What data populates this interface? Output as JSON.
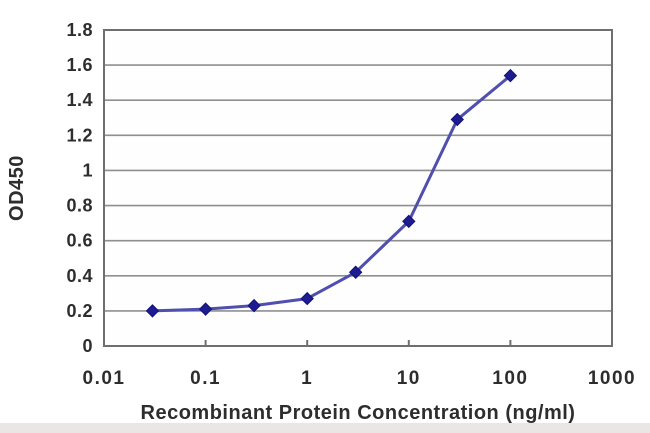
{
  "figure": {
    "background": "#ffffff"
  },
  "chart_data": {
    "type": "line",
    "title": "",
    "xlabel": "Recombinant Protein Concentration (ng/ml)",
    "ylabel": "OD450",
    "x_scale": "log",
    "xlim": [
      0.01,
      1000
    ],
    "ylim": [
      0,
      1.8
    ],
    "x": [
      0.03,
      0.1,
      0.3,
      1,
      3,
      10,
      30,
      100
    ],
    "y": [
      0.2,
      0.21,
      0.23,
      0.27,
      0.42,
      0.71,
      1.29,
      1.54
    ],
    "x_ticks": [
      {
        "value": 0.01,
        "label": "0.01"
      },
      {
        "value": 0.1,
        "label": "0.1"
      },
      {
        "value": 1,
        "label": "1"
      },
      {
        "value": 10,
        "label": "10"
      },
      {
        "value": 100,
        "label": "100"
      },
      {
        "value": 1000,
        "label": "1000"
      }
    ],
    "x_minor_ticks": [
      0.1,
      1,
      10,
      100
    ],
    "y_ticks": [
      {
        "value": 0,
        "label": "0"
      },
      {
        "value": 0.2,
        "label": "0.2"
      },
      {
        "value": 0.4,
        "label": "0.4"
      },
      {
        "value": 0.6,
        "label": "0.6"
      },
      {
        "value": 0.8,
        "label": "0.8"
      },
      {
        "value": 1,
        "label": "1"
      },
      {
        "value": 1.2,
        "label": "1.2"
      },
      {
        "value": 1.4,
        "label": "1.4"
      },
      {
        "value": 1.6,
        "label": "1.6"
      },
      {
        "value": 1.8,
        "label": "1.8"
      }
    ],
    "grid": "horizontal",
    "legend": "none",
    "marker": "diamond",
    "colors": {
      "line": "#4f4fae",
      "marker": "#1d1d91",
      "marker_edge": "#11117a",
      "grid": "#8f8f8f",
      "border": "#6f6f6f",
      "text": "#2d2d2d",
      "plot_background": "#fefefe",
      "artifact_band": "#ded8d8"
    }
  }
}
